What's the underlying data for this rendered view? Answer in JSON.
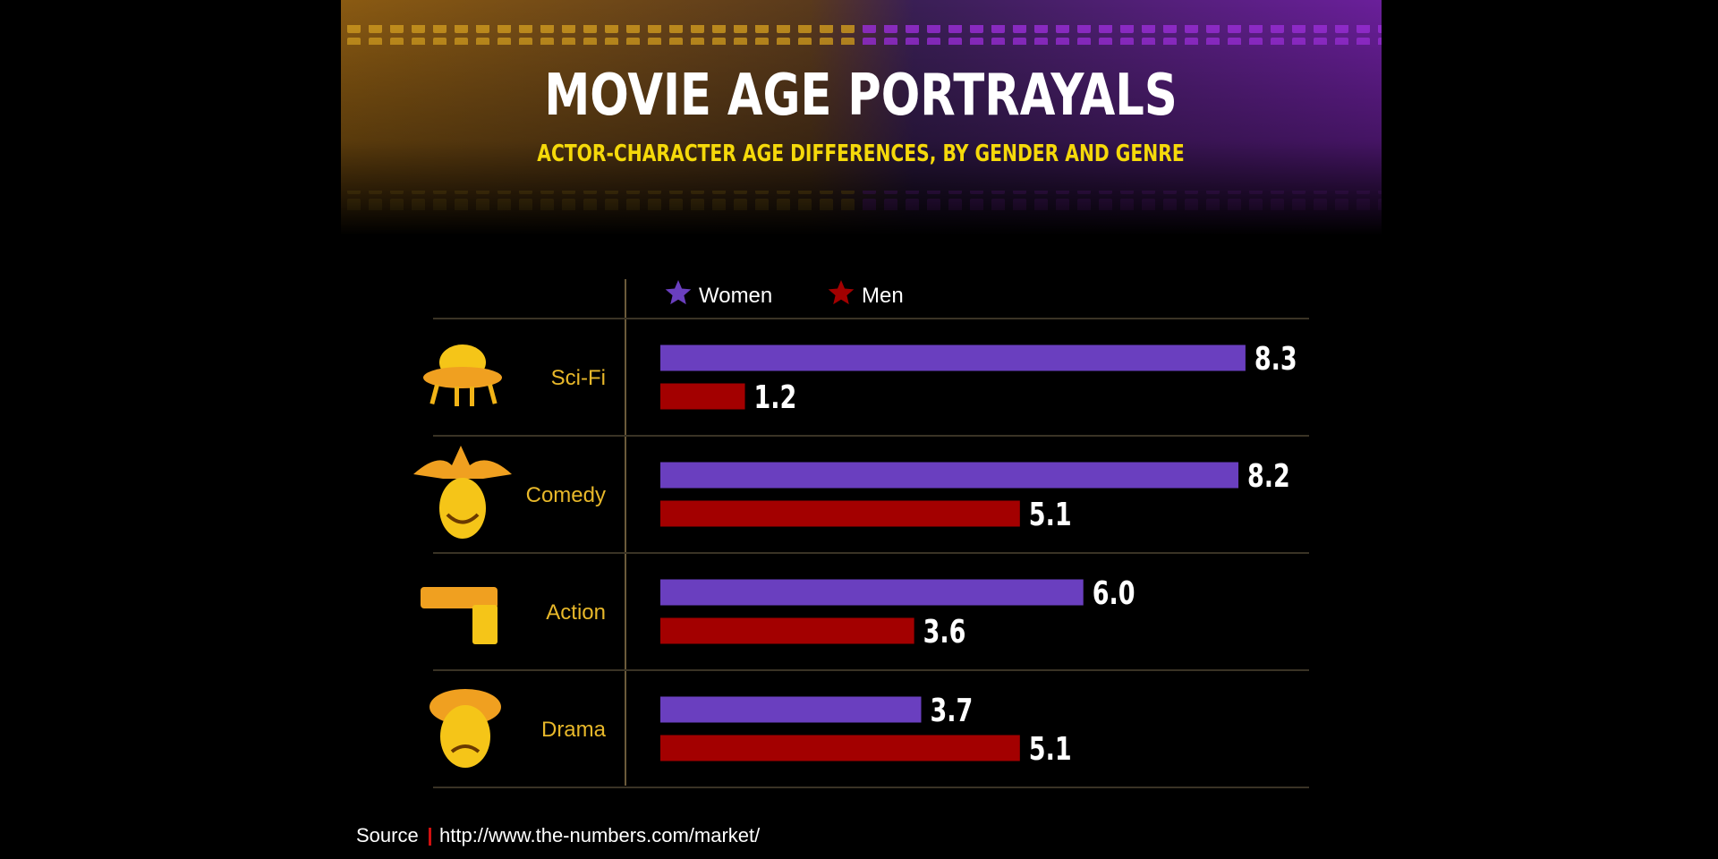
{
  "chart_data": {
    "type": "bar",
    "orientation": "horizontal",
    "title": "MOVIE AGE PORTRAYALS",
    "subtitle": "ACTOR-CHARACTER AGE DIFFERENCES, BY GENDER AND GENRE",
    "categories": [
      "Sci-Fi",
      "Comedy",
      "Action",
      "Drama"
    ],
    "series": [
      {
        "name": "Women",
        "color": "#6a3fbf",
        "values": [
          8.3,
          8.2,
          6.0,
          3.7
        ],
        "value_labels": [
          "8.3",
          "8.2",
          "6.0",
          "3.7"
        ]
      },
      {
        "name": "Men",
        "color": "#a30000",
        "values": [
          1.2,
          5.1,
          3.6,
          5.1
        ]
      }
    ],
    "source_label": "Source",
    "source_url": "http://www.the-numbers.com/market/"
  }
}
